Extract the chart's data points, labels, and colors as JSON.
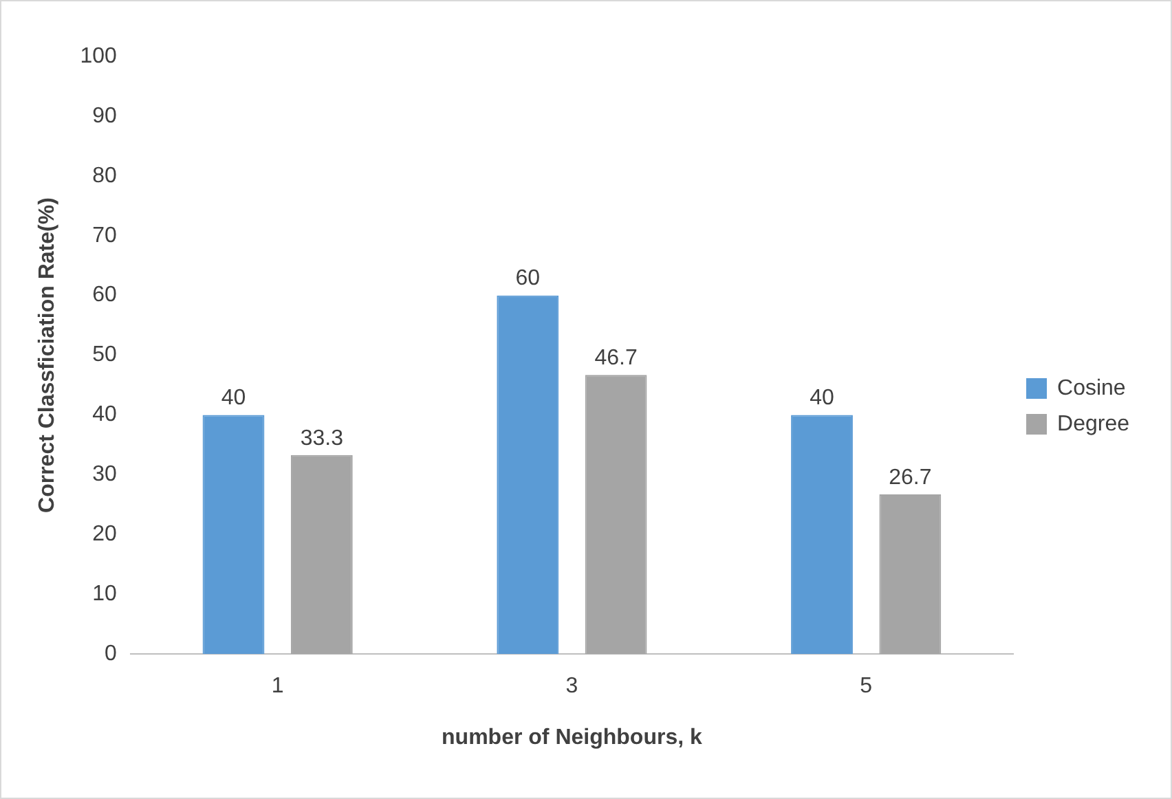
{
  "chart_data": {
    "type": "bar",
    "xlabel": "number of Neighbours, k",
    "ylabel": "Correct Classficiation Rate(%)",
    "categories": [
      "1",
      "3",
      "5"
    ],
    "series": [
      {
        "name": "Cosine",
        "color": "#5b9bd5",
        "values": [
          40,
          60,
          40
        ]
      },
      {
        "name": "Degree",
        "color": "#a5a5a5",
        "values": [
          33.3,
          46.7,
          26.7
        ]
      }
    ],
    "ylim": [
      0,
      100
    ],
    "yticks": [
      0,
      10,
      20,
      30,
      40,
      50,
      60,
      70,
      80,
      90,
      100
    ],
    "grid": false,
    "legend": "right",
    "data_labels": true
  }
}
